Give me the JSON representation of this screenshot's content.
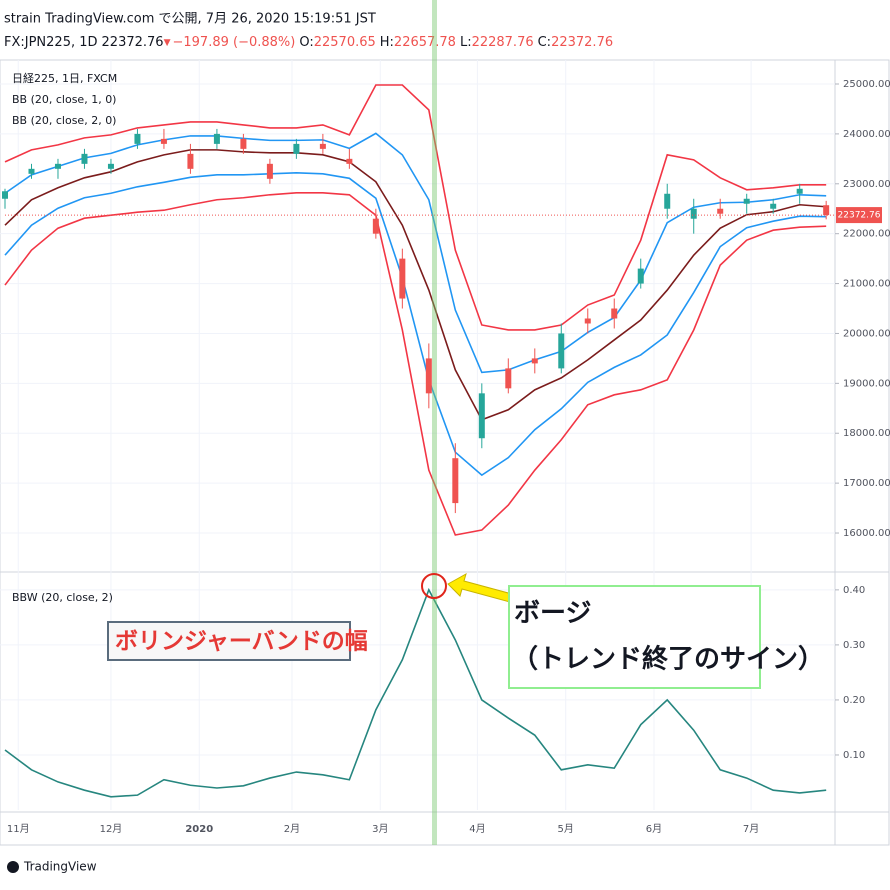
{
  "header": {
    "published": "strain TradingView.com で公開, 7月 26, 2020 15:19:51 JST",
    "symbol": "FX:JPN225, 1D",
    "arrow": "▼",
    "change": "−197.89 (−0.88%)",
    "o": "O:",
    "h": "H:",
    "l": "L:",
    "c": "C:"
  },
  "annotations": {
    "bbw_label": "ボリンジャーバンドの幅",
    "bulge_title": "ボージ",
    "bulge_note": "（トレンド終了のサイン）"
  },
  "footer": {
    "brand": "TradingView"
  },
  "chart_data": [
    {
      "type": "candlestick",
      "legend": [
        "日経225, 1日, FXCM"
      ],
      "up_color": "#26a69a",
      "down_color": "#ef5350",
      "x": [
        0,
        6,
        12,
        18,
        24,
        30,
        36,
        42,
        48,
        54,
        60,
        66,
        72,
        78,
        84,
        90,
        96,
        102,
        108,
        114,
        120,
        126,
        132,
        138,
        144,
        150,
        156,
        162,
        168,
        174,
        180,
        186
      ],
      "open": [
        22700,
        23200,
        23300,
        23400,
        23300,
        23800,
        23900,
        23600,
        23800,
        23900,
        23400,
        23600,
        23800,
        23500,
        22300,
        21500,
        19500,
        17500,
        17900,
        19300,
        19500,
        19300,
        20300,
        20500,
        21000,
        22500,
        22300,
        22500,
        22600,
        22500,
        22800,
        22570.65
      ],
      "high": [
        22900,
        23400,
        23500,
        23700,
        23500,
        24100,
        24100,
        23800,
        24100,
        24000,
        23500,
        23900,
        24000,
        23700,
        22500,
        21700,
        19800,
        17800,
        19000,
        19500,
        19700,
        20200,
        20500,
        20700,
        21500,
        23000,
        22700,
        22700,
        22800,
        22700,
        23000,
        22657.78
      ],
      "low": [
        22500,
        23100,
        23100,
        23300,
        23200,
        23700,
        23700,
        23200,
        23700,
        23600,
        23000,
        23500,
        23600,
        23300,
        21900,
        20500,
        18500,
        16400,
        17700,
        18800,
        19200,
        19200,
        20000,
        20100,
        20900,
        22300,
        22000,
        22300,
        22400,
        22400,
        22600,
        22287.76
      ],
      "close": [
        22850,
        23300,
        23400,
        23600,
        23400,
        24000,
        23800,
        23300,
        24000,
        23700,
        23100,
        23800,
        23700,
        23400,
        22000,
        20700,
        18800,
        16600,
        18800,
        18900,
        19400,
        20000,
        20200,
        20300,
        21300,
        22800,
        22500,
        22400,
        22700,
        22600,
        22900,
        22372.76
      ],
      "series": [
        {
          "name": "BB (20, close, 2, 0)",
          "color": "#f23645",
          "values": [
            23440,
            23680,
            23780,
            23920,
            23980,
            24120,
            24180,
            24240,
            24240,
            24180,
            24120,
            24120,
            24180,
            23980,
            24980,
            24980,
            24480,
            21670,
            20170,
            20070,
            20070,
            20170,
            20570,
            20770,
            21870,
            23580,
            23480,
            23120,
            22880,
            22920,
            22980,
            22980
          ]
        },
        {
          "name": "BB (20, close, 1, 0)",
          "color": "#2196f3",
          "values": [
            22810,
            23180,
            23350,
            23520,
            23610,
            23780,
            23880,
            23960,
            23960,
            23910,
            23870,
            23870,
            23880,
            23710,
            24010,
            23580,
            22680,
            20470,
            19220,
            19270,
            19470,
            19640,
            20020,
            20320,
            21070,
            22220,
            22530,
            22620,
            22630,
            22680,
            22780,
            22760
          ]
        },
        {
          "color": "#7b1c1c",
          "values": [
            22170,
            22680,
            22920,
            23120,
            23240,
            23440,
            23580,
            23680,
            23680,
            23640,
            23620,
            23620,
            23580,
            23440,
            23040,
            22170,
            20870,
            19270,
            18270,
            18470,
            18870,
            19110,
            19470,
            19870,
            20270,
            20870,
            21570,
            22110,
            22380,
            22440,
            22580,
            22540
          ]
        },
        {
          "color": "#2196f3",
          "values": [
            21570,
            22170,
            22510,
            22720,
            22810,
            22940,
            23030,
            23130,
            23180,
            23180,
            23200,
            23220,
            23200,
            23110,
            22710,
            21120,
            19070,
            17620,
            17160,
            17510,
            18070,
            18490,
            19020,
            19320,
            19570,
            19970,
            20820,
            21740,
            22120,
            22250,
            22350,
            22340
          ]
        },
        {
          "color": "#f23645",
          "values": [
            20970,
            21670,
            22110,
            22310,
            22370,
            22430,
            22470,
            22580,
            22680,
            22720,
            22780,
            22820,
            22820,
            22780,
            22370,
            20070,
            17260,
            15960,
            16060,
            16560,
            17260,
            17870,
            18570,
            18770,
            18870,
            19070,
            20070,
            21370,
            21870,
            22070,
            22130,
            22150
          ]
        }
      ],
      "xlim": [
        0,
        188
      ],
      "ylim": [
        15259,
        25381
      ],
      "yticks": [
        {
          "value": 16000,
          "label": "16000.00"
        },
        {
          "value": 17000,
          "label": "17000.00"
        },
        {
          "value": 18000,
          "label": "18000.00"
        },
        {
          "value": 19000,
          "label": "19000.00"
        },
        {
          "value": 20000,
          "label": "20000.00"
        },
        {
          "value": 21000,
          "label": "21000.00"
        },
        {
          "value": 22000,
          "label": "22000.00"
        },
        {
          "value": 23000,
          "label": "23000.00"
        },
        {
          "value": 24000,
          "label": "24000.00"
        },
        {
          "value": 25000,
          "label": "25000.00"
        }
      ],
      "grid": true
    },
    {
      "type": "line",
      "x": [
        0,
        6,
        12,
        18,
        24,
        30,
        36,
        42,
        48,
        54,
        60,
        66,
        72,
        78,
        84,
        90,
        96,
        102,
        108,
        114,
        120,
        126,
        132,
        138,
        144,
        150,
        156,
        162,
        168,
        174,
        180,
        186
      ],
      "series": [
        {
          "name": "BBW (20, close, 2)",
          "color": "#26867f",
          "values": [
            0.109,
            0.073,
            0.051,
            0.036,
            0.024,
            0.027,
            0.055,
            0.045,
            0.04,
            0.044,
            0.058,
            0.069,
            0.064,
            0.055,
            0.182,
            0.273,
            0.4,
            0.309,
            0.2,
            0.167,
            0.136,
            0.073,
            0.082,
            0.076,
            0.155,
            0.2,
            0.145,
            0.073,
            0.058,
            0.036,
            0.031,
            0.036
          ]
        }
      ],
      "xlim": [
        0,
        188
      ],
      "ylim": [
        0,
        0.427
      ],
      "yticks": [
        {
          "value": 0.1,
          "label": "0.10"
        },
        {
          "value": 0.2,
          "label": "0.20"
        },
        {
          "value": 0.3,
          "label": "0.30"
        },
        {
          "value": 0.4,
          "label": "0.40"
        }
      ],
      "xticks": [
        {
          "value": 3,
          "label": "11月"
        },
        {
          "value": 24,
          "label": "12月"
        },
        {
          "value": 44,
          "label": "2020"
        },
        {
          "value": 65,
          "label": "2月"
        },
        {
          "value": 85,
          "label": "3月"
        },
        {
          "value": 107,
          "label": "4月"
        },
        {
          "value": 127,
          "label": "5月"
        },
        {
          "value": 147,
          "label": "6月"
        },
        {
          "value": 169,
          "label": "7月"
        }
      ],
      "grid": true
    }
  ]
}
